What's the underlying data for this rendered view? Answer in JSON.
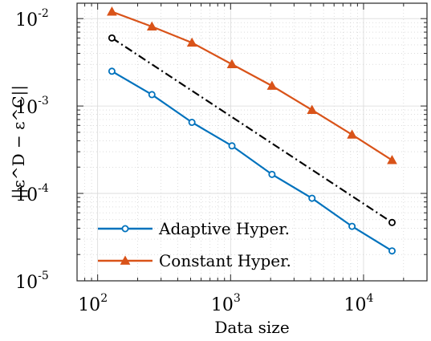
{
  "chart_data": {
    "type": "line",
    "xlabel": "Data size",
    "ylabel": "||ε^D − ε^C||",
    "xscale": "log",
    "yscale": "log",
    "xlim": [
      70,
      30000
    ],
    "ylim": [
      1e-05,
      0.015
    ],
    "grid": true,
    "legend_position": "bottom-left",
    "x_ticks": [
      {
        "base": "10",
        "exp": "2"
      },
      {
        "base": "10",
        "exp": "3"
      },
      {
        "base": "10",
        "exp": "4"
      }
    ],
    "y_ticks": [
      {
        "base": "10",
        "exp": "-2"
      },
      {
        "base": "10",
        "exp": "-3"
      },
      {
        "base": "10",
        "exp": "-4"
      },
      {
        "base": "10",
        "exp": "-5"
      }
    ],
    "series": [
      {
        "name": "Adaptive Hyper.",
        "color": "#0072BD",
        "marker": "circle",
        "line": "solid",
        "x": [
          128,
          256,
          512,
          1024,
          2048,
          4096,
          8192,
          16384
        ],
        "y": [
          0.0025,
          0.00135,
          0.00065,
          0.00035,
          0.000165,
          8.8e-05,
          4.2e-05,
          2.2e-05
        ]
      },
      {
        "name": "Constant Hyper.",
        "color": "#D95319",
        "marker": "triangle",
        "line": "solid",
        "x": [
          128,
          256,
          512,
          1024,
          2048,
          4096,
          8192,
          16384
        ],
        "y": [
          0.012,
          0.0081,
          0.0053,
          0.003,
          0.0017,
          0.0009,
          0.00047,
          0.00024
        ]
      }
    ],
    "reference_line": {
      "color": "#000000",
      "marker": "circle",
      "line": "dash-dot",
      "x": [
        128,
        16384
      ],
      "y": [
        0.006,
        4.65e-05
      ]
    }
  }
}
